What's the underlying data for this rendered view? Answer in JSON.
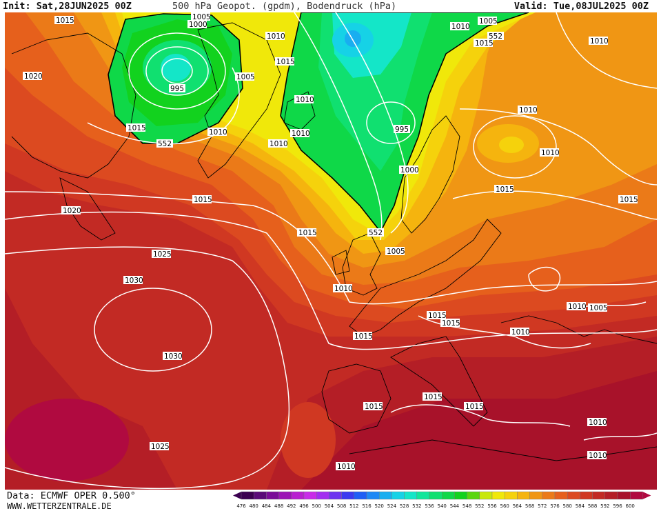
{
  "header": {
    "init": "Init: Sat,28JUN2025 00Z",
    "title": "500 hPa Geopot. (gpdm), Bodendruck (hPa)",
    "valid": "Valid: Tue,08JUL2025 00Z"
  },
  "footer": {
    "source": "Data: ECMWF OPER 0.500°",
    "website": "WWW.WETTERZENTRALE.DE"
  },
  "legend": {
    "ticks": [
      "476",
      "480",
      "484",
      "488",
      "492",
      "496",
      "500",
      "504",
      "508",
      "512",
      "516",
      "520",
      "524",
      "528",
      "532",
      "536",
      "540",
      "544",
      "548",
      "552",
      "556",
      "560",
      "564",
      "568",
      "572",
      "576",
      "580",
      "584",
      "588",
      "592",
      "596",
      "600"
    ],
    "colors": [
      "#3b0050",
      "#5a0a78",
      "#7a0c98",
      "#9b14b5",
      "#b81fd0",
      "#c82ce8",
      "#a22ef0",
      "#6d34f0",
      "#3b3af0",
      "#1f5ef5",
      "#1e88f5",
      "#19aef0",
      "#16d2e6",
      "#14e6c8",
      "#12e69b",
      "#10e070",
      "#0fd848",
      "#12d21e",
      "#5ad60e",
      "#c8e80c",
      "#f0e80a",
      "#f5d20c",
      "#f5b40e",
      "#f09614",
      "#eb7a18",
      "#e6601c",
      "#dc4a20",
      "#d03822",
      "#c22a24",
      "#b41e26",
      "#a8122a",
      "#b00a40"
    ]
  },
  "isobars": {
    "labels": [
      "1015",
      "1005",
      "1000",
      "1010",
      "1015",
      "1010",
      "1020",
      "995",
      "1005",
      "1015",
      "1010",
      "552",
      "1010",
      "1010",
      "1010",
      "995",
      "1000",
      "1010",
      "1010",
      "1015",
      "1015",
      "1020",
      "1015",
      "1015",
      "1025",
      "1030",
      "1030",
      "1015",
      "1015",
      "1015",
      "1010",
      "1005",
      "1010",
      "1025",
      "1015",
      "1015",
      "1015",
      "1010",
      "1010",
      "1010",
      "552",
      "1005",
      "552",
      "1015",
      "1010",
      "1005",
      "1010"
    ]
  },
  "colors": {
    "ocean_high": "#a8122a",
    "accent_green": "#0fd848",
    "accent_yellow": "#f0e80a",
    "accent_orange": "#f09614"
  }
}
